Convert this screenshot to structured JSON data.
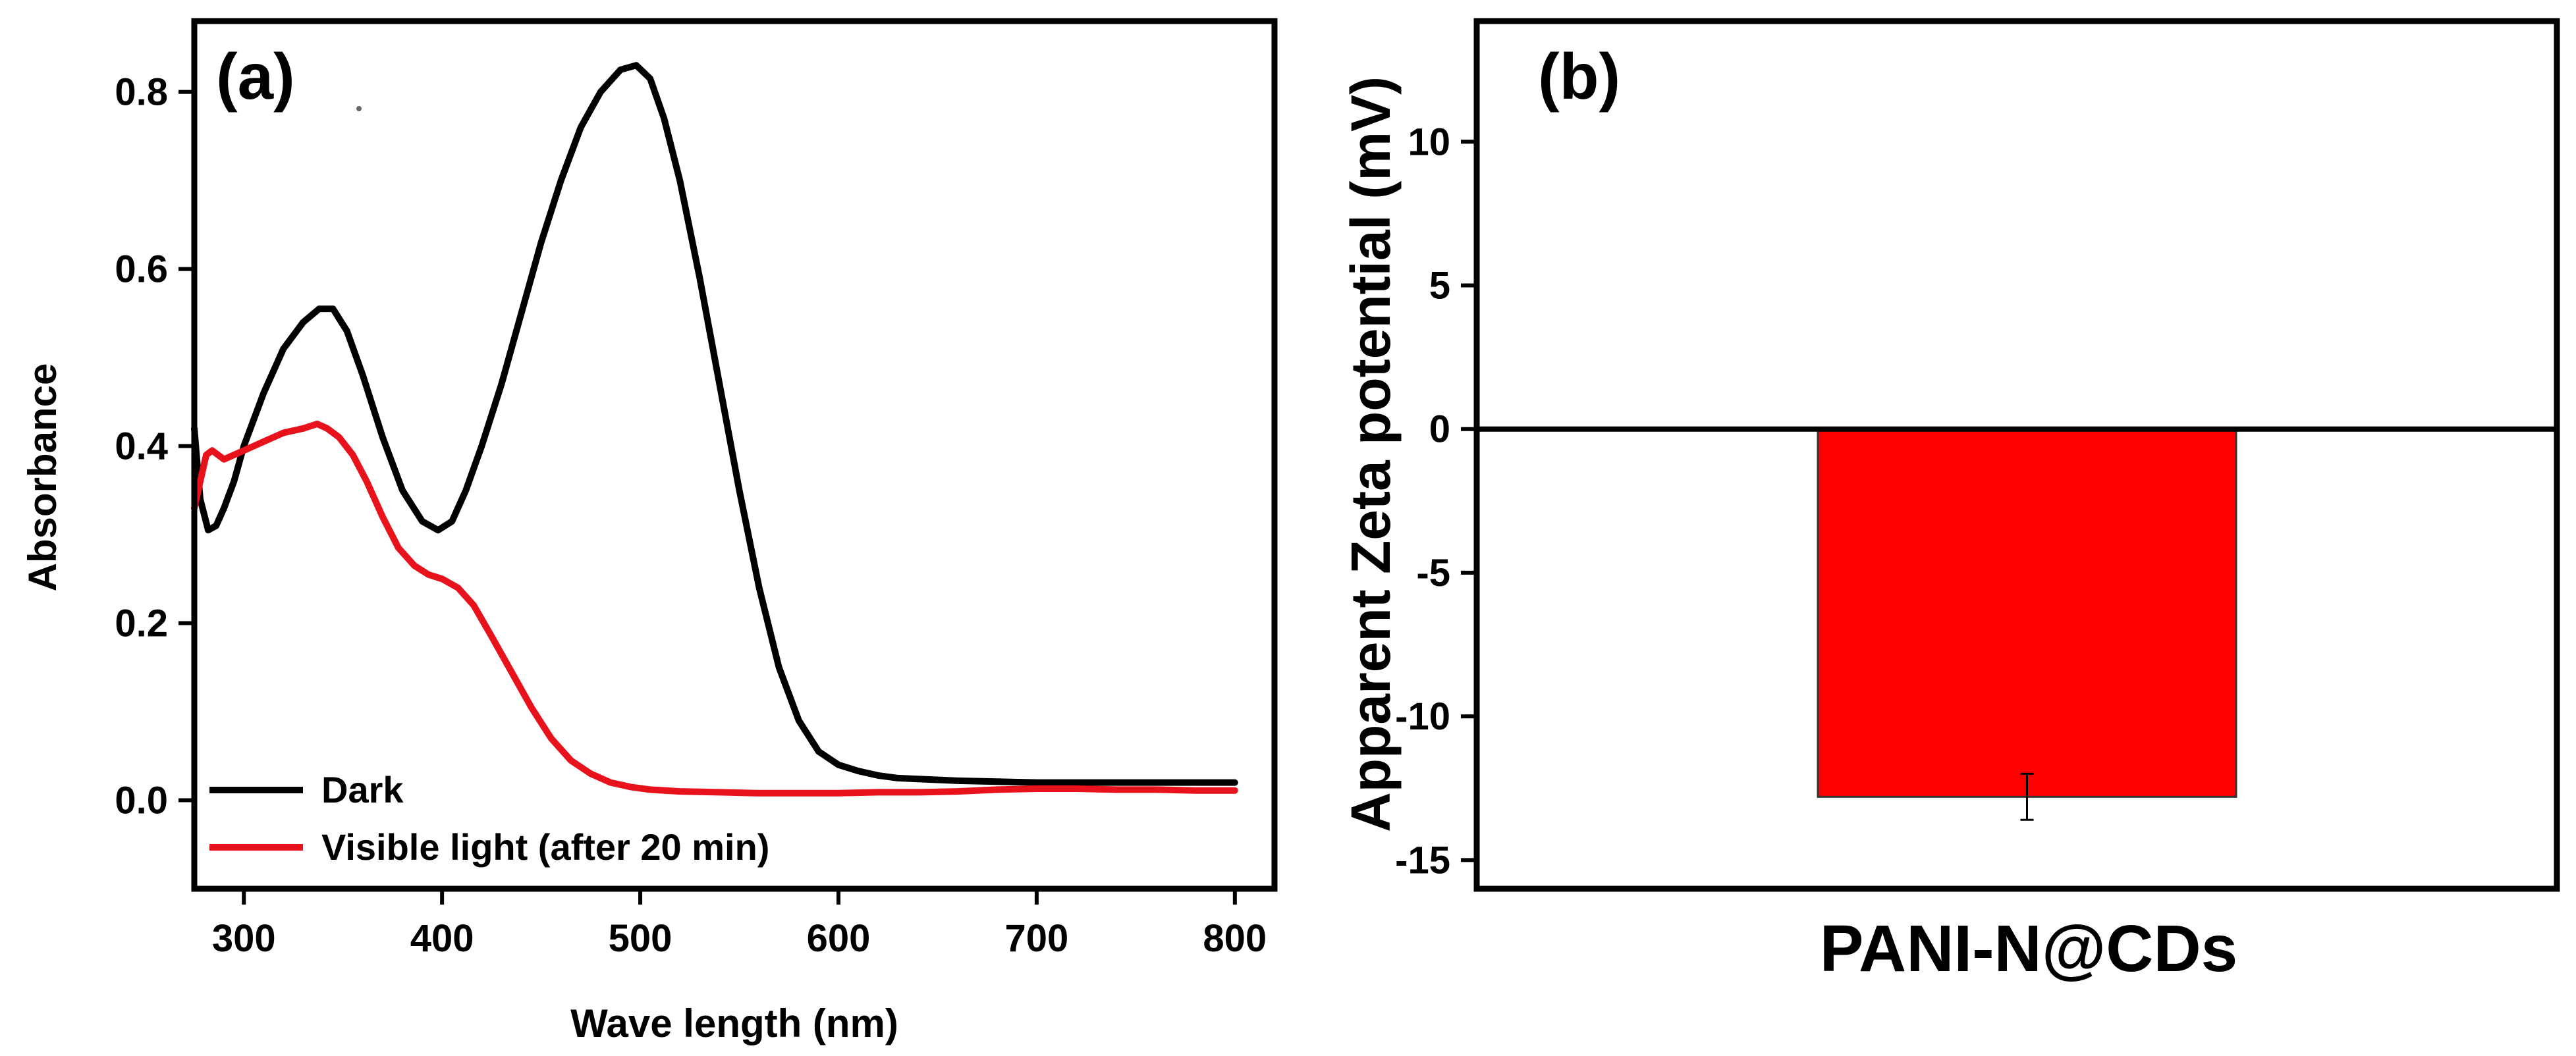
{
  "chart_data": [
    {
      "type": "line",
      "panel_label": "(a)",
      "xlabel": "Wave length (nm)",
      "ylabel": "Absorbance",
      "xlim": [
        275,
        820
      ],
      "ylim": [
        -0.1,
        0.88
      ],
      "x_ticks": [
        300,
        400,
        500,
        600,
        700,
        800
      ],
      "x_tick_labels": [
        "300",
        "400",
        "500",
        "600",
        "700",
        "800"
      ],
      "y_ticks": [
        0.0,
        0.2,
        0.4,
        0.6,
        0.8
      ],
      "y_tick_labels": [
        "0.0",
        "0.2",
        "0.4",
        "0.6",
        "0.8"
      ],
      "legend_position": "bottom-left",
      "series": [
        {
          "name": "Dark",
          "color": "#000000",
          "x": [
            275,
            278,
            282,
            286,
            290,
            295,
            300,
            310,
            320,
            330,
            338,
            345,
            352,
            360,
            370,
            380,
            390,
            398,
            405,
            412,
            420,
            430,
            440,
            450,
            460,
            470,
            480,
            490,
            498,
            505,
            512,
            520,
            530,
            540,
            550,
            560,
            570,
            580,
            590,
            600,
            610,
            620,
            630,
            640,
            660,
            680,
            700,
            720,
            740,
            760,
            780,
            800
          ],
          "values": [
            0.42,
            0.34,
            0.305,
            0.31,
            0.33,
            0.36,
            0.4,
            0.46,
            0.51,
            0.54,
            0.555,
            0.555,
            0.53,
            0.48,
            0.41,
            0.35,
            0.315,
            0.305,
            0.315,
            0.35,
            0.4,
            0.47,
            0.55,
            0.63,
            0.7,
            0.76,
            0.8,
            0.825,
            0.83,
            0.815,
            0.77,
            0.7,
            0.59,
            0.47,
            0.35,
            0.24,
            0.15,
            0.09,
            0.055,
            0.04,
            0.033,
            0.028,
            0.025,
            0.024,
            0.022,
            0.021,
            0.02,
            0.02,
            0.02,
            0.02,
            0.02,
            0.02
          ]
        },
        {
          "name": "Visible light (after 20 min)",
          "color": "#e8121c",
          "x": [
            275,
            278,
            281,
            284,
            287,
            290,
            295,
            300,
            310,
            320,
            330,
            337,
            342,
            348,
            355,
            362,
            370,
            378,
            386,
            393,
            400,
            408,
            416,
            425,
            435,
            445,
            455,
            465,
            475,
            485,
            495,
            505,
            520,
            540,
            560,
            580,
            600,
            620,
            640,
            660,
            680,
            700,
            720,
            740,
            760,
            780,
            800
          ],
          "values": [
            0.33,
            0.36,
            0.39,
            0.395,
            0.39,
            0.385,
            0.39,
            0.395,
            0.405,
            0.415,
            0.42,
            0.425,
            0.42,
            0.41,
            0.39,
            0.36,
            0.32,
            0.285,
            0.265,
            0.255,
            0.25,
            0.24,
            0.22,
            0.185,
            0.145,
            0.105,
            0.07,
            0.045,
            0.03,
            0.02,
            0.015,
            0.012,
            0.01,
            0.009,
            0.008,
            0.008,
            0.008,
            0.009,
            0.009,
            0.01,
            0.012,
            0.013,
            0.013,
            0.012,
            0.012,
            0.011,
            0.011
          ]
        }
      ]
    },
    {
      "type": "bar",
      "panel_label": "(b)",
      "xlabel": "",
      "ylabel": "Apparent Zeta potential (mV)",
      "ylim": [
        -16,
        14.2
      ],
      "y_ticks": [
        -15,
        -10,
        -5,
        0,
        5,
        10
      ],
      "y_tick_labels": [
        "-15",
        "-10",
        "-5",
        "0",
        "5",
        "10"
      ],
      "categories": [
        "PANI-N@CDs"
      ],
      "values": [
        -12.8
      ],
      "error": [
        0.8
      ],
      "bar_color": "#ff0000"
    }
  ]
}
